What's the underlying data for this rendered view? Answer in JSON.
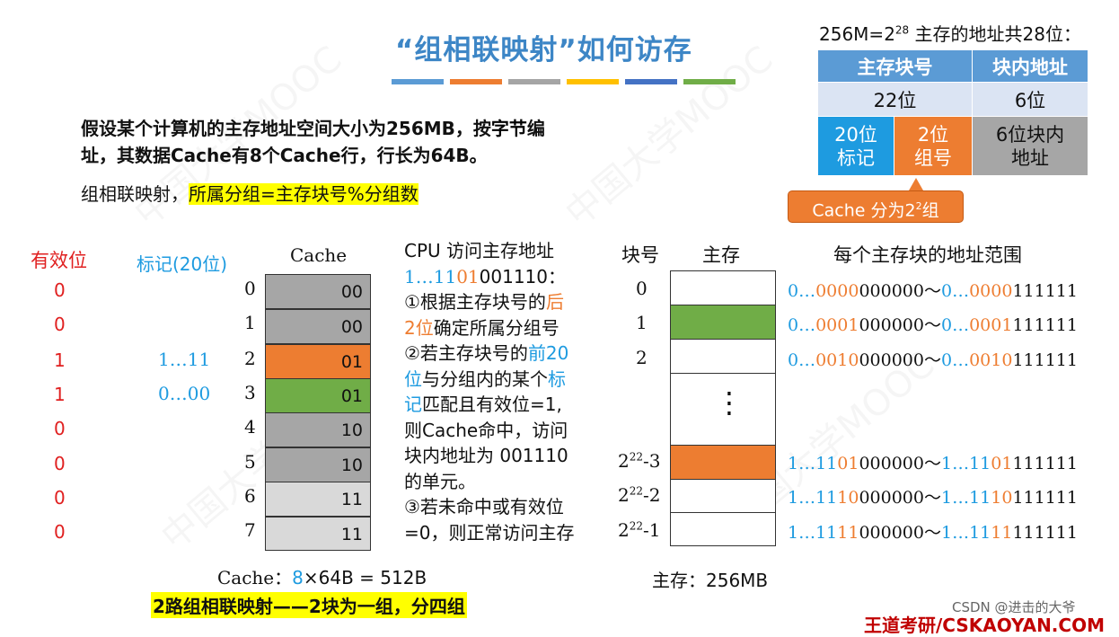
{
  "slide": {
    "title": "“组相联映射”如何访存",
    "accent_bars": [
      "#5b9bd5",
      "#ed7d31",
      "#a5a5a5",
      "#ffc000",
      "#4472c4",
      "#70ad47"
    ],
    "intro_line1a": "假设某个计算机的主存地址空间大小为256MB，按",
    "intro_line1b": "字节",
    "intro_line1c": "编",
    "intro_line2": "址，其数据Cache有8个Cache行，行长为64B。",
    "mapping_prefix": "组相联映射，",
    "mapping_rule": "所属分组=主存块号%分组数"
  },
  "address": {
    "heading_prefix": "256M=2",
    "heading_exp": "28",
    "heading_suffix": " 主存的地址共28位：",
    "col_block": "主存块号",
    "col_offset": "块内地址",
    "bits_block": "22位",
    "bits_offset": "6位",
    "tag": "20位\n标记",
    "group": "2位\n组号",
    "offset_desc": "6位块内\n地址",
    "callout_prefix": "Cache 分为2",
    "callout_exp": "2",
    "callout_suffix": "组"
  },
  "cache": {
    "valid_header": "有效位",
    "tag_header": "标记(20位)",
    "cache_header": "Cache",
    "rows": [
      {
        "index": "0",
        "valid": "0",
        "tag": "",
        "group": "00",
        "color": "#a6a6a6"
      },
      {
        "index": "1",
        "valid": "0",
        "tag": "",
        "group": "00",
        "color": "#a6a6a6"
      },
      {
        "index": "2",
        "valid": "1",
        "tag": "1…11",
        "group": "01",
        "color": "#ed7d31"
      },
      {
        "index": "3",
        "valid": "1",
        "tag": "0…00",
        "group": "01",
        "color": "#70ad47"
      },
      {
        "index": "4",
        "valid": "0",
        "tag": "",
        "group": "10",
        "color": "#a6a6a6"
      },
      {
        "index": "5",
        "valid": "0",
        "tag": "",
        "group": "10",
        "color": "#a6a6a6"
      },
      {
        "index": "6",
        "valid": "0",
        "tag": "",
        "group": "11",
        "color": "#d9d9d9"
      },
      {
        "index": "7",
        "valid": "0",
        "tag": "",
        "group": "11",
        "color": "#d9d9d9"
      }
    ],
    "size_prefix": "Cache：",
    "size_ways": "8",
    "size_suffix": "×64B = 512B",
    "summary": "2路组相联映射——2块为一组，分四组"
  },
  "steps": {
    "l1": "CPU 访问主存地址",
    "addr_a": "1…11",
    "addr_b": "01",
    "addr_c": "001110",
    "addr_d": "：",
    "s1a": "①根据主存块号的",
    "s1b": "后",
    "s1c": "2位",
    "s1d": "确定所属分组号",
    "s2a": "②若主存块号的",
    "s2b": "前20",
    "s2c": "位",
    "s2d": "与分组内的某个",
    "s2e": "标",
    "s2f": "记",
    "s2g": "匹配且有效位=1,",
    "s2h": "则Cache命中，访问",
    "s2i": "块内地址为 001110",
    "s2j": "的单元。",
    "s3a": "③若未命中或有效位",
    "s3b": "=0，则正常访问主存"
  },
  "memory": {
    "block_header": "块号",
    "mem_header": "主存",
    "range_header": "每个主存块的地址范围",
    "dots": "⋮",
    "size_label": "主存：256MB",
    "rows": [
      {
        "label": "0",
        "exp": "",
        "suffix": "",
        "start_a": "0…",
        "start_b": "0000",
        "start_c": "000000",
        "end_a": "0…",
        "end_b": "0000",
        "end_c": "111111"
      },
      {
        "label": "1",
        "exp": "",
        "suffix": "",
        "start_a": "0…",
        "start_b": "0001",
        "start_c": "000000",
        "end_a": "0…",
        "end_b": "0001",
        "end_c": "111111"
      },
      {
        "label": "2",
        "exp": "",
        "suffix": "",
        "start_a": "0…",
        "start_b": "0010",
        "start_c": "000000",
        "end_a": "0…",
        "end_b": "0010",
        "end_c": "111111"
      },
      {
        "label": "2",
        "exp": "22",
        "suffix": "-3",
        "start_a": "1…11",
        "start_b": "01",
        "start_c": "000000",
        "end_a": "1…11",
        "end_b": "01",
        "end_c": "111111"
      },
      {
        "label": "2",
        "exp": "22",
        "suffix": "-2",
        "start_a": "1…11",
        "start_b": "10",
        "start_c": "000000",
        "end_a": "1…11",
        "end_b": "10",
        "end_c": "111111"
      },
      {
        "label": "2",
        "exp": "22",
        "suffix": "-1",
        "start_a": "1…11",
        "start_b": "11",
        "start_c": "000000",
        "end_a": "1…11",
        "end_b": "11",
        "end_c": "111111"
      }
    ]
  },
  "footer": {
    "brand": "王道考研/CSKAOYAN.COM",
    "credit": "CSDN @进击的大爷"
  }
}
